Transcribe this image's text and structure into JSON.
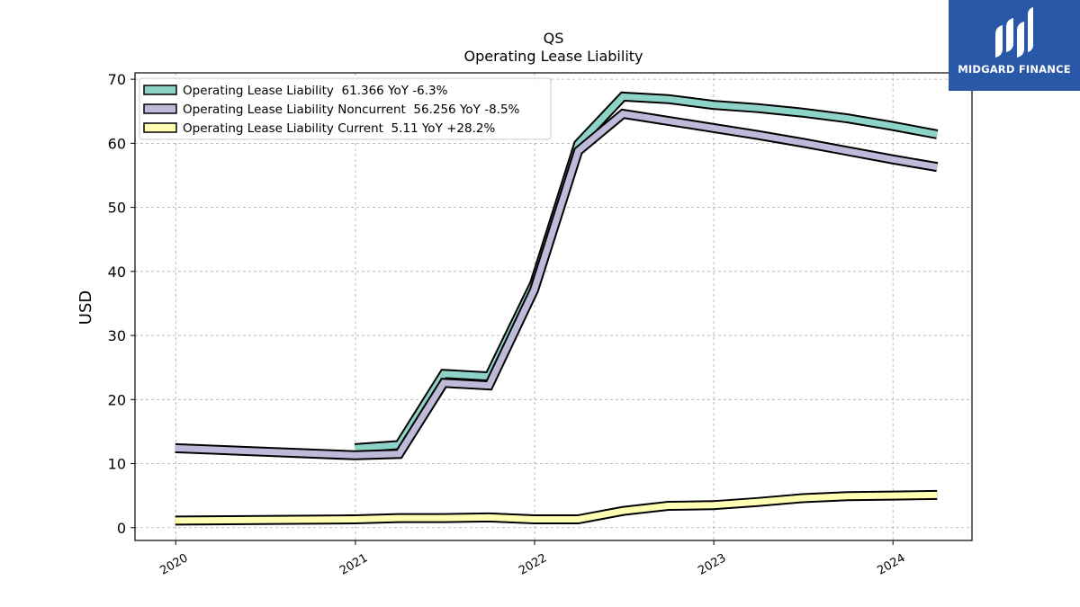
{
  "chart_data": {
    "type": "line",
    "title": "QS",
    "subtitle": "Operating Lease Liability",
    "xlabel": "",
    "ylabel": "USD",
    "ylim": [
      -2,
      71
    ],
    "xlim": [
      "2019-10-10",
      "2024-06-10"
    ],
    "yticks": [
      0,
      10,
      20,
      30,
      40,
      50,
      60,
      70
    ],
    "xticks": [
      "2020-01-01",
      "2021-01-01",
      "2022-01-01",
      "2023-01-01",
      "2024-01-01"
    ],
    "xtick_labels": [
      "2020",
      "2021",
      "2022",
      "2023",
      "2024"
    ],
    "grid": true,
    "legend_position": "top-left",
    "series": [
      {
        "name": "Operating Lease Liability  61.366 YoY -6.3%",
        "color": "#8dd3c7",
        "x": [
          "2020-12-31",
          "2021-03-31",
          "2021-06-30",
          "2021-09-30",
          "2021-12-31",
          "2022-03-31",
          "2022-06-30",
          "2022-09-30",
          "2022-12-31",
          "2023-03-31",
          "2023-06-30",
          "2023-09-30",
          "2023-12-31",
          "2024-03-31"
        ],
        "values": [
          12.4,
          12.9,
          24.0,
          23.6,
          38.1,
          59.9,
          67.3,
          66.9,
          66.0,
          65.5,
          64.8,
          63.9,
          62.7,
          61.4
        ]
      },
      {
        "name": "Operating Lease Liability Noncurrent  56.256 YoY -8.5%",
        "color": "#bebada",
        "x": [
          "2019-12-31",
          "2020-12-31",
          "2021-03-31",
          "2021-06-30",
          "2021-09-30",
          "2021-12-31",
          "2022-03-31",
          "2022-06-30",
          "2022-09-30",
          "2022-12-31",
          "2023-03-31",
          "2023-06-30",
          "2023-09-30",
          "2023-12-31",
          "2024-03-31"
        ],
        "values": [
          12.4,
          11.3,
          11.5,
          22.6,
          22.2,
          37.1,
          58.8,
          64.6,
          63.5,
          62.4,
          61.3,
          60.1,
          58.8,
          57.5,
          56.3
        ]
      },
      {
        "name": "Operating Lease Liability Current  5.11 YoY +28.2%",
        "color": "#ffffb3",
        "x": [
          "2019-12-31",
          "2020-12-31",
          "2021-03-31",
          "2021-06-30",
          "2021-09-30",
          "2021-12-31",
          "2022-03-31",
          "2022-06-30",
          "2022-09-30",
          "2022-12-31",
          "2023-03-31",
          "2023-06-30",
          "2023-09-30",
          "2023-12-31",
          "2024-03-31"
        ],
        "values": [
          1.1,
          1.3,
          1.5,
          1.5,
          1.6,
          1.3,
          1.3,
          2.6,
          3.4,
          3.5,
          4.0,
          4.6,
          4.9,
          5.0,
          5.1
        ]
      }
    ]
  },
  "brand": {
    "name": "MIDGARD FINANCE",
    "color": "#2a58a8",
    "icon": "midgard-logo-icon"
  }
}
